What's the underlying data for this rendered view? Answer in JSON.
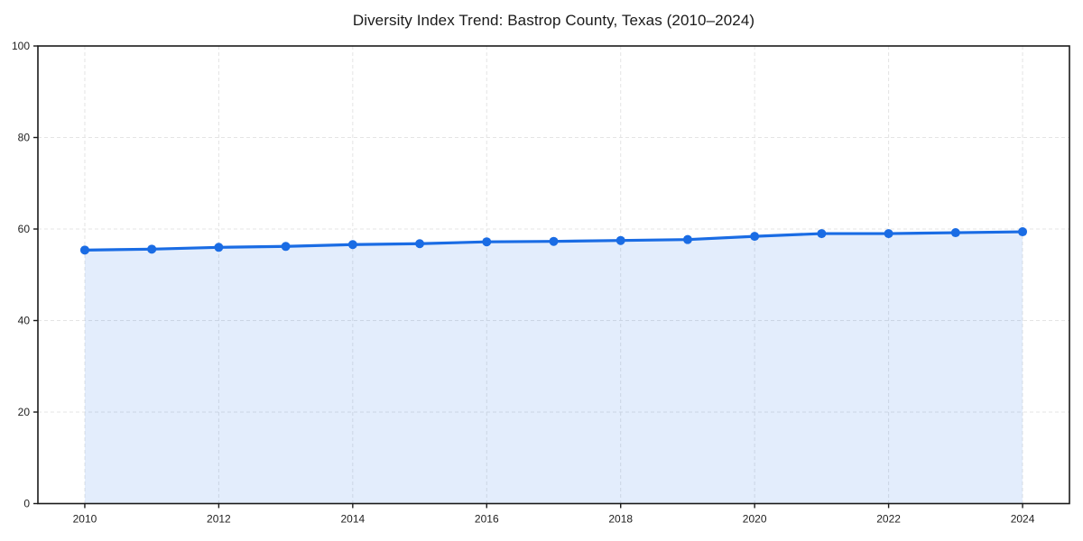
{
  "page": {
    "background_color": "#ffffff"
  },
  "chart_data": {
    "type": "area",
    "title": "Diversity Index Trend: Bastrop County, Texas (2010–2024)",
    "xlabel": "",
    "ylabel": "",
    "x": [
      2010,
      2011,
      2012,
      2013,
      2014,
      2015,
      2016,
      2017,
      2018,
      2019,
      2020,
      2021,
      2022,
      2023,
      2024
    ],
    "series": [
      {
        "name": "Diversity Index",
        "values": [
          55.4,
          55.6,
          56.0,
          56.2,
          56.6,
          56.8,
          57.2,
          57.3,
          57.5,
          57.7,
          58.4,
          59.0,
          59.0,
          59.2,
          59.4
        ]
      }
    ],
    "xlim": [
      2009.3,
      2024.7
    ],
    "ylim": [
      0,
      100
    ],
    "xticks": [
      2010,
      2012,
      2014,
      2016,
      2018,
      2020,
      2022,
      2024
    ],
    "yticks": [
      0,
      20,
      40,
      60,
      80,
      100
    ],
    "grid": true,
    "grid_style": "dashed",
    "legend_position": "none",
    "colors": {
      "line": "#1a6ce4",
      "marker": "#1a6ce4",
      "area_fill": "rgba(26, 108, 228, 0.12)",
      "grid": "#e4e4e4",
      "spine": "#1a1a1a",
      "tick_label": "#1f1f1f",
      "title": "#1a1a1a"
    }
  }
}
